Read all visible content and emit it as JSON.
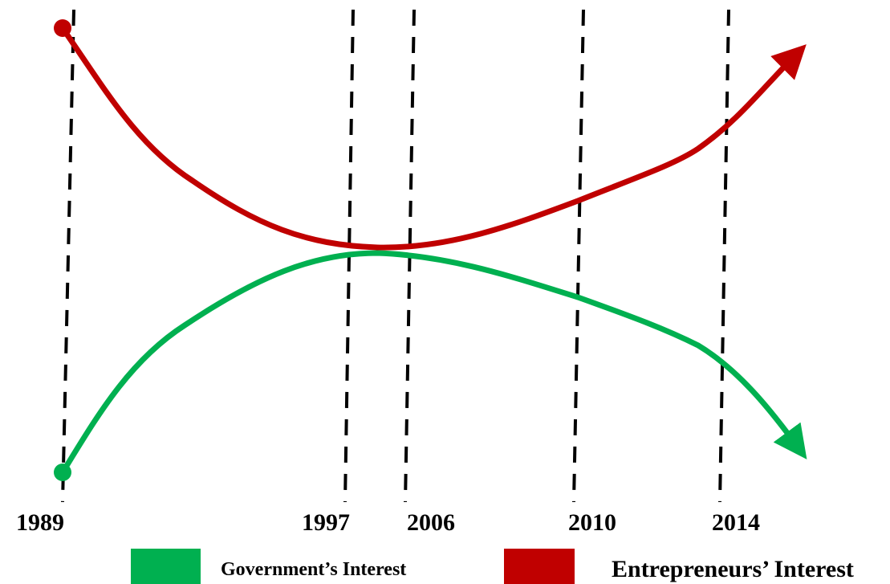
{
  "years": [
    "1989",
    "1997",
    "2006",
    "2010",
    "2014"
  ],
  "legend": [
    {
      "label": "Government’s Interest",
      "color": "#00b050"
    },
    {
      "label": "Entrepreneurs’ Interest",
      "color": "#c00000"
    }
  ]
}
